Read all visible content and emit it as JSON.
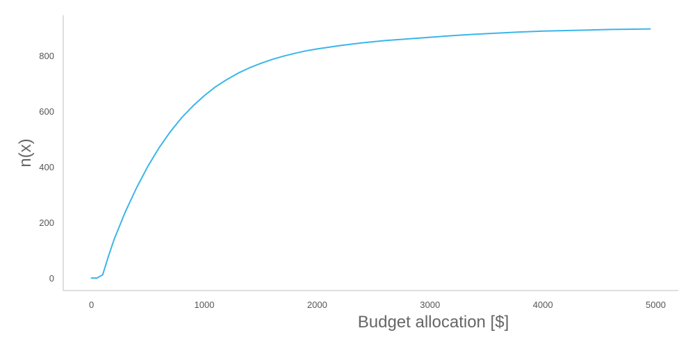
{
  "chart_data": {
    "type": "line",
    "title": "",
    "xlabel": "Budget allocation [$]",
    "ylabel": "n(x)",
    "xlim": [
      -250,
      5200
    ],
    "ylim": [
      -45,
      945
    ],
    "grid": false,
    "legend": "none",
    "x_ticks": [
      0,
      1000,
      2000,
      3000,
      4000,
      5000
    ],
    "y_ticks": [
      0,
      200,
      400,
      600,
      800
    ],
    "x_tick_labels": [
      "0",
      "1000",
      "2000",
      "3000",
      "4000",
      "5000"
    ],
    "y_tick_labels": [
      "0",
      "200",
      "400",
      "600",
      "800"
    ],
    "series": [
      {
        "color": "#3ab5ea",
        "x": [
          0,
          50,
          100,
          150,
          200,
          300,
          400,
          500,
          600,
          700,
          800,
          900,
          1000,
          1100,
          1200,
          1300,
          1400,
          1500,
          1600,
          1700,
          1800,
          1900,
          2000,
          2200,
          2400,
          2600,
          2800,
          3000,
          3200,
          3400,
          3600,
          3800,
          4000,
          4200,
          4400,
          4600,
          4800,
          4950
        ],
        "y": [
          0,
          0,
          12,
          78,
          138,
          238,
          325,
          402,
          469,
          527,
          577,
          619,
          656,
          688,
          714,
          737,
          756,
          772,
          786,
          798,
          808,
          817,
          824,
          836,
          846,
          854,
          860,
          866,
          872,
          877,
          881,
          885,
          888,
          890,
          892,
          894,
          895,
          896
        ]
      }
    ]
  }
}
